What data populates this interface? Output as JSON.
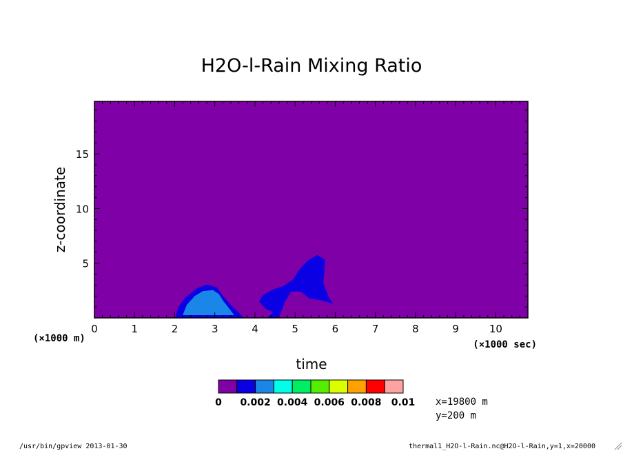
{
  "chart_data": {
    "type": "heatmap",
    "title": "H2O-l-Rain Mixing Ratio",
    "xlabel": "time",
    "ylabel": "z-coordinate",
    "x_unit": "(×1000 sec)",
    "y_unit": "(×1000 m)",
    "xlim": [
      0,
      10.8
    ],
    "ylim": [
      0,
      19.8
    ],
    "x_ticks": [
      "0",
      "1",
      "2",
      "3",
      "4",
      "5",
      "6",
      "7",
      "8",
      "9",
      "10"
    ],
    "y_ticks": [
      "5",
      "10",
      "15"
    ],
    "background_level": 0,
    "regions": [
      {
        "level": 0.001,
        "color": "#0b00e3",
        "points": [
          [
            2.02,
            0
          ],
          [
            3.72,
            0
          ],
          [
            3.6,
            0.5
          ],
          [
            3.4,
            1.2
          ],
          [
            3.2,
            2
          ],
          [
            3.05,
            2.8
          ],
          [
            2.8,
            3.05
          ],
          [
            2.55,
            2.7
          ],
          [
            2.25,
            1.8
          ],
          [
            2.08,
            0.9
          ]
        ]
      },
      {
        "level": 0.002,
        "color": "#1a86e8",
        "points": [
          [
            2.2,
            0.25
          ],
          [
            3.48,
            0.25
          ],
          [
            3.35,
            0.9
          ],
          [
            3.2,
            1.6
          ],
          [
            3.1,
            2.2
          ],
          [
            2.95,
            2.55
          ],
          [
            2.7,
            2.45
          ],
          [
            2.5,
            2
          ],
          [
            2.3,
            1.2
          ]
        ]
      },
      {
        "level": 0.001,
        "color": "#0b00e3",
        "points": [
          [
            4.3,
            0
          ],
          [
            4.55,
            0
          ],
          [
            4.65,
            0.5
          ],
          [
            4.75,
            1.5
          ],
          [
            4.9,
            2.4
          ],
          [
            5.15,
            2.4
          ],
          [
            5.35,
            1.8
          ],
          [
            5.65,
            1.6
          ],
          [
            5.95,
            1.3
          ],
          [
            5.85,
            1.8
          ],
          [
            5.7,
            3.2
          ],
          [
            5.75,
            5.3
          ],
          [
            5.55,
            5.75
          ],
          [
            5.3,
            5.2
          ],
          [
            5.1,
            4.4
          ],
          [
            4.95,
            3.5
          ],
          [
            4.7,
            2.9
          ],
          [
            4.45,
            2.6
          ],
          [
            4.2,
            2.1
          ],
          [
            4.1,
            1.5
          ],
          [
            4.25,
            0.9
          ],
          [
            4.45,
            0.5
          ]
        ]
      }
    ],
    "colorbar": {
      "colors": [
        "#7f00a6",
        "#0b00e3",
        "#1a86e8",
        "#00ffe8",
        "#00ee66",
        "#55ee00",
        "#dcff00",
        "#ffa200",
        "#ff0000",
        "#ffa2a2"
      ],
      "labels": [
        "0",
        "0.002",
        "0.004",
        "0.006",
        "0.008",
        "0.01"
      ]
    },
    "annotations": [
      "x=19800 m",
      "y=200 m"
    ],
    "footer_left": "/usr/bin/gpview  2013-01-30",
    "footer_right": "thermal1_H2O-l-Rain.nc@H2O-l-Rain,y=1,x=20000"
  }
}
